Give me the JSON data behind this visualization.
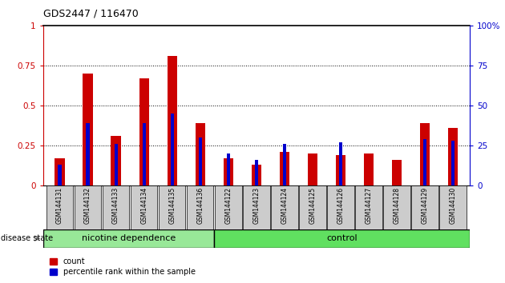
{
  "title": "GDS2447 / 116470",
  "samples": [
    "GSM144131",
    "GSM144132",
    "GSM144133",
    "GSM144134",
    "GSM144135",
    "GSM144136",
    "GSM144122",
    "GSM144123",
    "GSM144124",
    "GSM144125",
    "GSM144126",
    "GSM144127",
    "GSM144128",
    "GSM144129",
    "GSM144130"
  ],
  "count_values": [
    0.17,
    0.7,
    0.31,
    0.67,
    0.81,
    0.39,
    0.17,
    0.13,
    0.21,
    0.2,
    0.19,
    0.2,
    0.16,
    0.39,
    0.36
  ],
  "percentile_values": [
    0.13,
    0.39,
    0.26,
    0.39,
    0.45,
    0.3,
    0.2,
    0.16,
    0.26,
    0.0,
    0.27,
    0.0,
    0.0,
    0.29,
    0.28
  ],
  "count_color": "#cc0000",
  "percentile_color": "#0000cc",
  "ylim": [
    0,
    1.0
  ],
  "yticks_left": [
    0,
    0.25,
    0.5,
    0.75,
    1.0
  ],
  "yticks_right": [
    0,
    25,
    50,
    75,
    100
  ],
  "ytick_labels_left": [
    "0",
    "0.25",
    "0.5",
    "0.75",
    "1"
  ],
  "ytick_labels_right": [
    "0",
    "25",
    "50",
    "75",
    "100%"
  ],
  "group1_label": "nicotine dependence",
  "group2_label": "control",
  "disease_state_label": "disease state",
  "group1_count": 6,
  "group2_count": 9,
  "legend_count_label": "count",
  "legend_percentile_label": "percentile rank within the sample",
  "group1_color": "#98e898",
  "group2_color": "#60e060",
  "tick_label_bg": "#cccccc",
  "plot_bg_color": "#ffffff"
}
